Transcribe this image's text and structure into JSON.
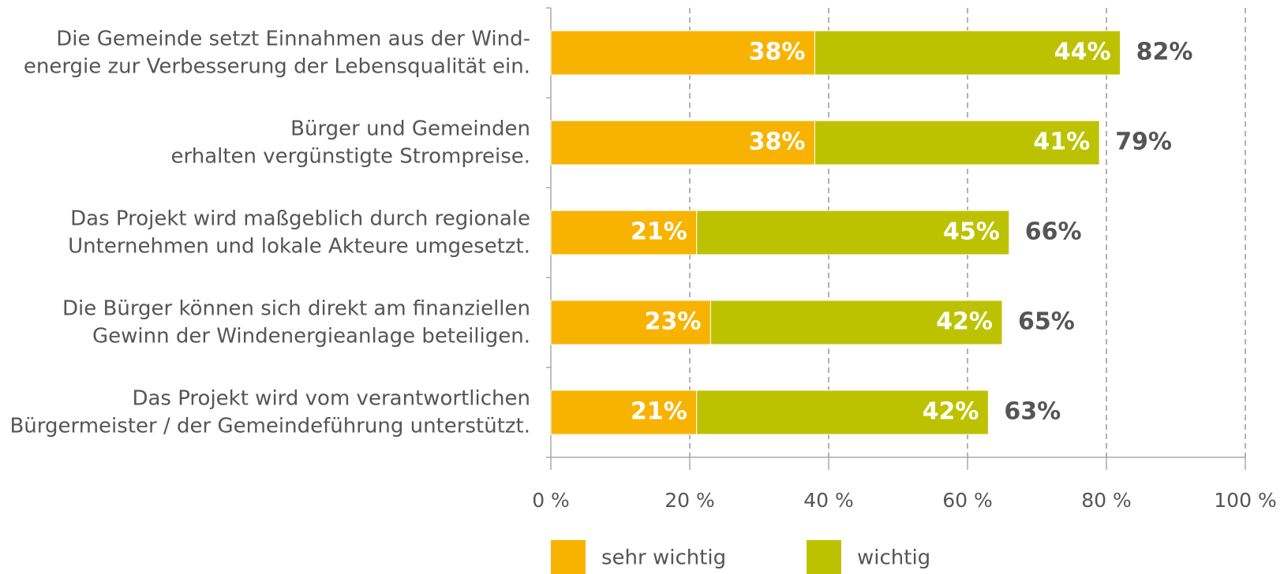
{
  "chart_data": {
    "type": "stacked-bar-horizontal",
    "categories": [
      [
        "Die Gemeinde setzt Einnahmen aus der Wind-",
        "energie zur Verbesserung der Lebensqualität ein."
      ],
      [
        "Bürger und Gemeinden",
        "erhalten vergünstigte Strompreise."
      ],
      [
        "Das Projekt wird maßgeblich durch regionale",
        "Unternehmen und lokale Akteure umgesetzt."
      ],
      [
        "Die Bürger können sich direkt am finanziellen",
        "Gewinn der Windenergieanlage beteiligen."
      ],
      [
        "Das Projekt wird vom verantwortlichen",
        "Bürgermeister / der Gemeindeführung unterstützt."
      ]
    ],
    "series": [
      {
        "name": "sehr wichtig",
        "color": "#f8b300",
        "values": [
          38,
          38,
          21,
          23,
          21
        ],
        "value_labels": [
          "38%",
          "38%",
          "21%",
          "23%",
          "21%"
        ]
      },
      {
        "name": "wichtig",
        "color": "#bdc200",
        "values": [
          44,
          41,
          45,
          42,
          42
        ],
        "value_labels": [
          "44%",
          "41%",
          "45%",
          "42%",
          "42%"
        ]
      }
    ],
    "totals": [
      82,
      79,
      66,
      65,
      63
    ],
    "total_labels": [
      "82%",
      "79%",
      "66%",
      "65%",
      "63%"
    ],
    "xlim": [
      0,
      100
    ],
    "xticks": [
      {
        "value": 0,
        "label": "0 %"
      },
      {
        "value": 20,
        "label": "20 %"
      },
      {
        "value": 40,
        "label": "40 %"
      },
      {
        "value": 60,
        "label": "60 %"
      },
      {
        "value": 80,
        "label": "80 %"
      },
      {
        "value": 100,
        "label": "100 %"
      }
    ],
    "grid": true,
    "legend": "bottom"
  }
}
